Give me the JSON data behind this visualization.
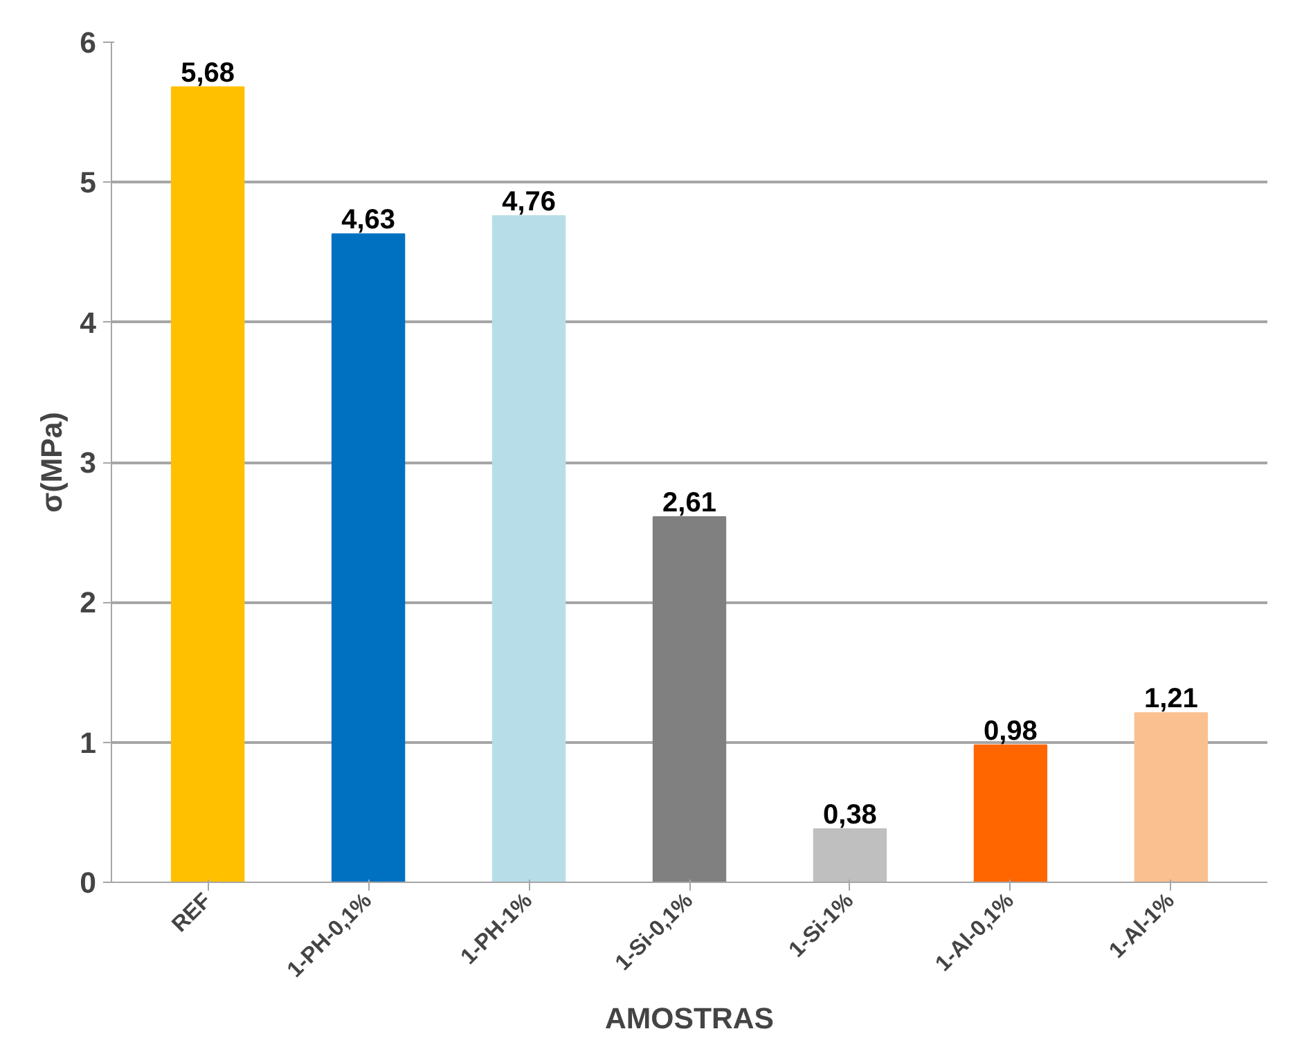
{
  "chart_data": {
    "type": "bar",
    "xlabel": "AMOSTRAS",
    "ylabel": "σ(MPa)",
    "categories": [
      "REF",
      "1-PH-0,1%",
      "1-PH-1%",
      "1-Si-0,1%",
      "1-Si-1%",
      "1-Al-0,1%",
      "1-Al-1%"
    ],
    "values": [
      5.68,
      4.63,
      4.76,
      2.61,
      0.38,
      0.98,
      1.21
    ],
    "colors": [
      "#ffc000",
      "#0070c0",
      "#b7dee8",
      "#808080",
      "#bfbfbf",
      "#ff6600",
      "#fac090"
    ],
    "value_labels": [
      "5,68",
      "4,63",
      "4,76",
      "2,61",
      "0,38",
      "0,98",
      "1,21"
    ],
    "ylim": [
      0,
      6
    ],
    "yticks": [
      0,
      1,
      2,
      3,
      4,
      5,
      6
    ],
    "grid": "y"
  }
}
